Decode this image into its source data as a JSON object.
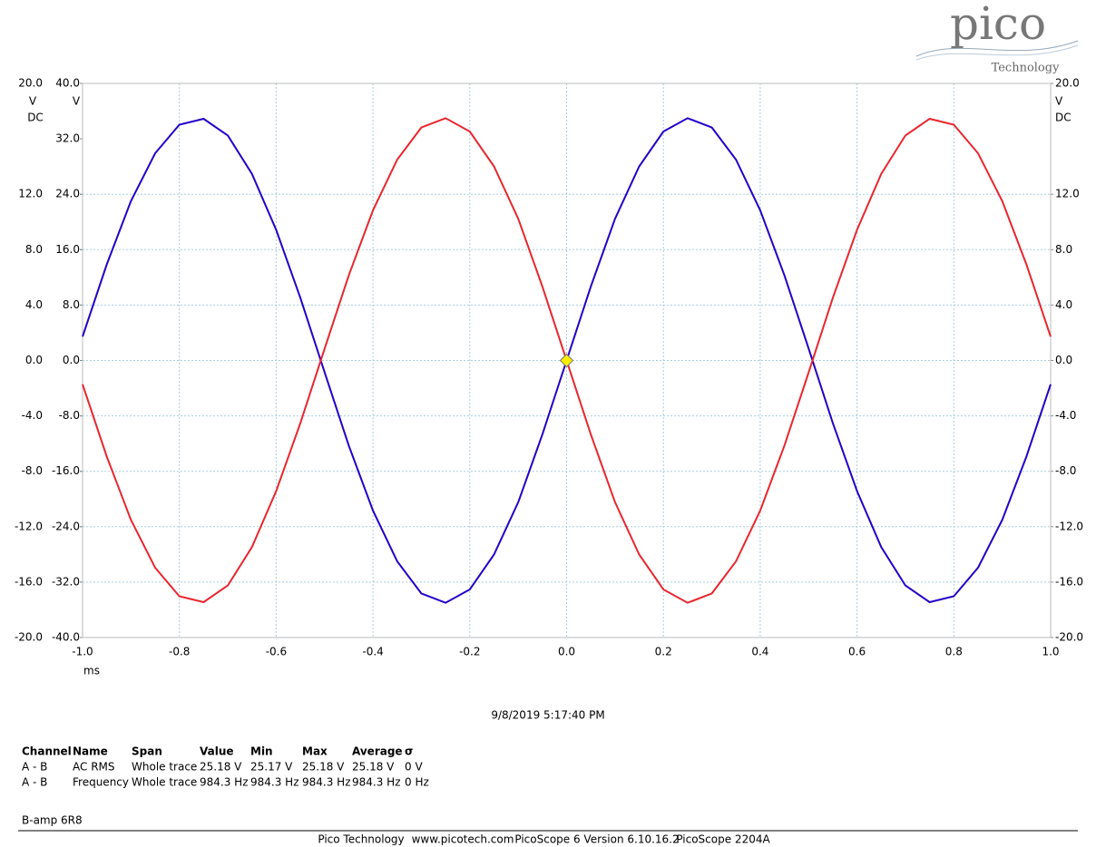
{
  "logo": {
    "name": "pico",
    "tagline": "Technology"
  },
  "chart_data": {
    "type": "line",
    "x": [
      -1.0,
      -0.95,
      -0.9,
      -0.85,
      -0.8,
      -0.75,
      -0.7,
      -0.65,
      -0.6,
      -0.55,
      -0.5,
      -0.45,
      -0.4,
      -0.35,
      -0.3,
      -0.25,
      -0.2,
      -0.15,
      -0.1,
      -0.05,
      0,
      0.05,
      0.1,
      0.15,
      0.2,
      0.25,
      0.3,
      0.35,
      0.4,
      0.45,
      0.5,
      0.55,
      0.6,
      0.65,
      0.7,
      0.75,
      0.8,
      0.85,
      0.9,
      0.95,
      1.0
    ],
    "xlim": [
      -1,
      1
    ],
    "xticks": [
      {
        "value": -1,
        "label": "-1.0"
      },
      {
        "value": -0.8,
        "label": "-0.8"
      },
      {
        "value": -0.6,
        "label": "-0.6"
      },
      {
        "value": -0.4,
        "label": "-0.4"
      },
      {
        "value": -0.2,
        "label": "-0.2"
      },
      {
        "value": 0,
        "label": "0.0"
      },
      {
        "value": 0.2,
        "label": "0.2"
      },
      {
        "value": 0.4,
        "label": "0.4"
      },
      {
        "value": 0.6,
        "label": "0.6"
      },
      {
        "value": 0.8,
        "label": "0.8"
      },
      {
        "value": 1,
        "label": "1.0"
      }
    ],
    "xlabel": "ms",
    "ylim": [
      -20,
      20
    ],
    "y_unit": "V",
    "y_coupling": "DC",
    "y_color": "#2222bb",
    "yticks": [
      {
        "value": 20,
        "label": "20.0"
      },
      {
        "value": 12,
        "label": "12.0"
      },
      {
        "value": 8,
        "label": "8.0"
      },
      {
        "value": 4,
        "label": "4.0"
      },
      {
        "value": 0,
        "label": "0.0"
      },
      {
        "value": -4,
        "label": "-4.0"
      },
      {
        "value": -8,
        "label": "-8.0"
      },
      {
        "value": -12,
        "label": "-12.0"
      },
      {
        "value": -16,
        "label": "-16.0"
      },
      {
        "value": -20,
        "label": "-20.0"
      }
    ],
    "y3lim": [
      -40,
      40
    ],
    "y3_unit": "V",
    "y3_color": "#800080",
    "y3ticks": [
      {
        "value": 40,
        "label": "40.0"
      },
      {
        "value": 32,
        "label": "32.0"
      },
      {
        "value": 24,
        "label": "24.0"
      },
      {
        "value": 16,
        "label": "16.0"
      },
      {
        "value": 8,
        "label": "8.0"
      },
      {
        "value": 0,
        "label": "0.0"
      },
      {
        "value": -8,
        "label": "-8.0"
      },
      {
        "value": -16,
        "label": "-16.0"
      },
      {
        "value": -24,
        "label": "-24.0"
      },
      {
        "value": -32,
        "label": "-32.0"
      },
      {
        "value": -40,
        "label": "-40.0"
      }
    ],
    "y2lim": [
      -20,
      20
    ],
    "y2_unit": "V",
    "y2_coupling": "DC",
    "y2_color": "#e00000",
    "y2ticks": [
      {
        "value": 20,
        "label": "20.0"
      },
      {
        "value": 12,
        "label": "12.0"
      },
      {
        "value": 8,
        "label": "8.0"
      },
      {
        "value": 4,
        "label": "4.0"
      },
      {
        "value": 0,
        "label": "0.0"
      },
      {
        "value": -4,
        "label": "-4.0"
      },
      {
        "value": -8,
        "label": "-8.0"
      },
      {
        "value": -12,
        "label": "-12.0"
      },
      {
        "value": -16,
        "label": "-16.0"
      },
      {
        "value": -20,
        "label": "-20.0"
      }
    ],
    "grid": true,
    "series": [
      {
        "color": "#2200c8",
        "axis": "y",
        "values": [
          1.72,
          6.94,
          11.5,
          14.96,
          17.02,
          17.45,
          16.24,
          13.47,
          9.43,
          4.51,
          -0.86,
          -6.14,
          -10.84,
          -14.5,
          -16.82,
          -17.49,
          -16.53,
          -14.01,
          -10.23,
          -5.34,
          0,
          5.34,
          10.23,
          14.01,
          16.53,
          17.49,
          16.82,
          14.5,
          10.84,
          6.14,
          0.86,
          -4.51,
          -9.43,
          -13.47,
          -16.24,
          -17.45,
          -17.02,
          -14.96,
          -11.5,
          -6.94,
          -1.72
        ]
      },
      {
        "color": "#e8262e",
        "axis": "y2",
        "values": [
          -1.72,
          -6.94,
          -11.5,
          -14.96,
          -17.02,
          -17.45,
          -16.24,
          -13.47,
          -9.43,
          -4.51,
          0.86,
          6.14,
          10.84,
          14.5,
          16.82,
          17.49,
          16.53,
          14.01,
          10.23,
          5.34,
          0,
          -5.34,
          -10.23,
          -14.01,
          -16.53,
          -17.49,
          -16.82,
          -14.5,
          -10.84,
          -6.14,
          -0.86,
          4.51,
          9.43,
          13.47,
          16.24,
          17.45,
          17.02,
          14.96,
          11.5,
          6.94,
          1.72
        ]
      }
    ]
  },
  "timestamp": "9/8/2019 5:17:40 PM",
  "measurements": {
    "headers": [
      "Channel",
      "Name",
      "Span",
      "Value",
      "Min",
      "Max",
      "Average",
      "σ"
    ],
    "rows": [
      [
        "A - B",
        "AC RMS",
        "Whole trace",
        "25.18 V",
        "25.17 V",
        "25.18 V",
        "25.18 V",
        "0 V"
      ],
      [
        "A - B",
        "Frequency",
        "Whole trace",
        "984.3 Hz",
        "984.3 Hz",
        "984.3 Hz",
        "984.3 Hz",
        "0 Hz"
      ]
    ]
  },
  "note": "B-amp 6R8",
  "footer": [
    "Pico Technology",
    "www.picotech.com",
    "PicoScope 6 Version 6.10.16.2",
    "PicoScope 2204A"
  ]
}
